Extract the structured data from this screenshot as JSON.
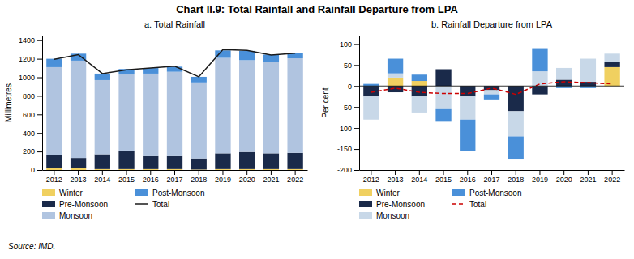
{
  "title": "Chart II.9: Total Rainfall and Rainfall Departure from LPA",
  "annotations": [
    "Source: IMD."
  ],
  "chart_data": [
    {
      "type": "bar",
      "title": "a.  Total Rainfall",
      "y_label": "Millimetres",
      "categories": [
        "2012",
        "2013",
        "2014",
        "2015",
        "2016",
        "2017",
        "2018",
        "2019",
        "2020",
        "2021",
        "2022"
      ],
      "stacked": true,
      "grid": false,
      "legend": "bottom",
      "ylim": [
        0,
        1450
      ],
      "yticks": [
        0,
        200,
        400,
        600,
        800,
        1000,
        1200,
        1400
      ],
      "series": [
        {
          "name": "Winter",
          "type": "bar",
          "color": "#f0d060",
          "values": [
            20,
            20,
            10,
            10,
            10,
            10,
            5,
            10,
            10,
            10,
            10
          ]
        },
        {
          "name": "Pre-Monsoon",
          "type": "bar",
          "color": "#1a2a4a",
          "values": [
            140,
            110,
            160,
            200,
            140,
            140,
            120,
            170,
            185,
            170,
            175
          ]
        },
        {
          "name": "Monsoon",
          "type": "bar",
          "color": "#b0c4e0",
          "values": [
            950,
            1050,
            800,
            820,
            890,
            910,
            820,
            1030,
            990,
            990,
            1020
          ]
        },
        {
          "name": "Post-Monsoon",
          "type": "bar",
          "color": "#4a90d9",
          "values": [
            90,
            75,
            70,
            60,
            60,
            55,
            60,
            80,
            100,
            75,
            55
          ]
        },
        {
          "name": "Total",
          "type": "line",
          "color": "#1a1a1a",
          "line_style": "solid",
          "values": [
            1195,
            1245,
            1040,
            1080,
            1100,
            1120,
            1005,
            1300,
            1290,
            1240,
            1260
          ]
        }
      ]
    },
    {
      "type": "bar",
      "title": "b. Rainfall Departure from LPA",
      "y_label": "Per cent",
      "categories": [
        "2012",
        "2013",
        "2014",
        "2015",
        "2016",
        "2017",
        "2018",
        "2019",
        "2020",
        "2021",
        "2022"
      ],
      "stacked": true,
      "grid": false,
      "legend": "bottom",
      "ylim": [
        -200,
        120
      ],
      "yticks": [
        -200,
        -150,
        -100,
        -50,
        0,
        50,
        100
      ],
      "series": [
        {
          "name": "Winter",
          "type": "bar",
          "color": "#f0d060",
          "values": [
            0,
            20,
            12,
            0,
            0,
            0,
            0,
            0,
            0,
            0,
            45
          ]
        },
        {
          "name": "Pre-Monsoon",
          "type": "bar",
          "color": "#1a2a4a",
          "values": [
            -25,
            -15,
            -25,
            40,
            -25,
            -10,
            -60,
            -20,
            15,
            10,
            12
          ]
        },
        {
          "name": "Monsoon",
          "type": "bar",
          "color": "#c8d8e8",
          "values": [
            -55,
            10,
            -38,
            -55,
            -55,
            -10,
            -60,
            35,
            28,
            55,
            20
          ]
        },
        {
          "name": "Post-Monsoon",
          "type": "bar",
          "color": "#4a90d9",
          "values": [
            5,
            35,
            15,
            -30,
            -75,
            -12,
            -55,
            55,
            -5,
            -5,
            0
          ]
        },
        {
          "name": "Total",
          "type": "line",
          "color": "#cc0000",
          "line_style": "dashed",
          "values": [
            -15,
            -5,
            -15,
            -18,
            -18,
            -5,
            -20,
            5,
            10,
            8,
            5
          ]
        }
      ]
    }
  ]
}
